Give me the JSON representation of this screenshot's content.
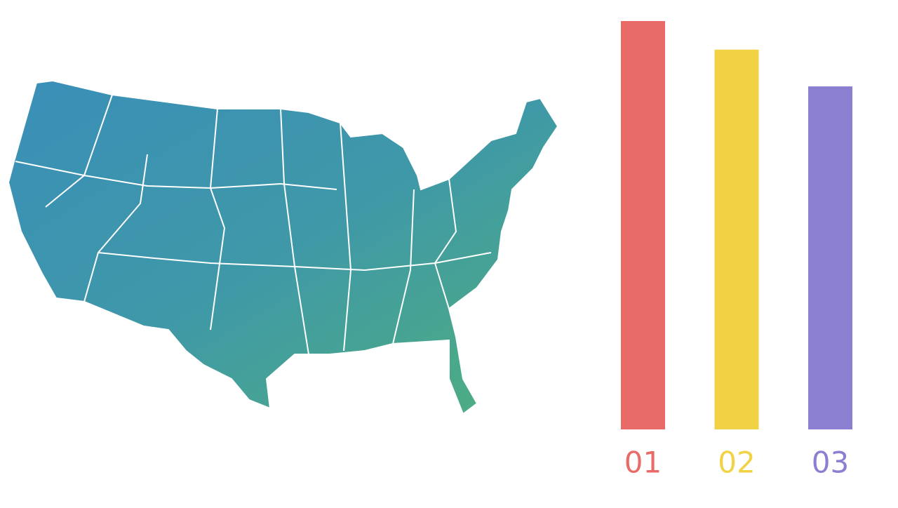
{
  "chart_data": {
    "type": "bar",
    "categories": [
      "01",
      "02",
      "03"
    ],
    "values": [
      100,
      93,
      84
    ],
    "colors": [
      "#e96b67",
      "#f2d245",
      "#8a7fd1"
    ],
    "ylim": [
      0,
      100
    ]
  }
}
